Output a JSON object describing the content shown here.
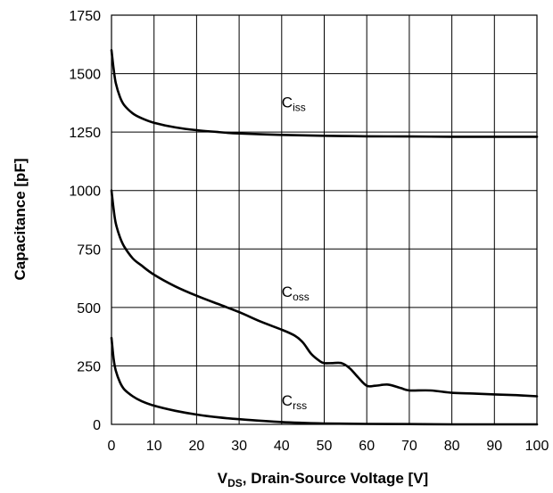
{
  "chart_data": {
    "type": "line",
    "xlabel": {
      "main": "V",
      "sub": "DS",
      "rest": ", Drain-Source Voltage [V]"
    },
    "ylabel": "Capacitance [pF]",
    "xlim": [
      0,
      100
    ],
    "ylim": [
      0,
      1750
    ],
    "x_ticks": [
      0,
      10,
      20,
      30,
      40,
      50,
      60,
      70,
      80,
      90,
      100
    ],
    "y_ticks": [
      0,
      250,
      500,
      750,
      1000,
      1250,
      1500,
      1750
    ],
    "grid": true,
    "series": [
      {
        "name": "Ciss",
        "label_main": "C",
        "label_sub": "iss",
        "x": [
          0,
          0.5,
          1,
          2,
          3,
          5,
          7,
          10,
          15,
          20,
          25,
          30,
          40,
          50,
          60,
          70,
          80,
          90,
          100
        ],
        "y": [
          1600,
          1520,
          1460,
          1400,
          1365,
          1330,
          1310,
          1290,
          1270,
          1258,
          1250,
          1244,
          1238,
          1234,
          1232,
          1231,
          1230,
          1230,
          1230
        ]
      },
      {
        "name": "Coss",
        "label_main": "C",
        "label_sub": "oss",
        "x": [
          0,
          0.5,
          1,
          2,
          3,
          5,
          7,
          10,
          15,
          20,
          25,
          30,
          35,
          40,
          43,
          45,
          47,
          49,
          50,
          52,
          54,
          56,
          58,
          60,
          62,
          65,
          68,
          70,
          75,
          80,
          85,
          90,
          95,
          100
        ],
        "y": [
          1000,
          920,
          860,
          800,
          760,
          710,
          680,
          640,
          590,
          550,
          515,
          480,
          440,
          405,
          380,
          350,
          300,
          270,
          262,
          262,
          262,
          240,
          200,
          165,
          165,
          170,
          155,
          145,
          145,
          135,
          132,
          128,
          125,
          120
        ]
      },
      {
        "name": "Crss",
        "label_main": "C",
        "label_sub": "rss",
        "x": [
          0,
          0.5,
          1,
          2,
          3,
          5,
          7,
          10,
          15,
          20,
          25,
          30,
          40,
          50,
          60,
          70,
          80,
          90,
          100
        ],
        "y": [
          370,
          280,
          230,
          180,
          150,
          120,
          100,
          80,
          58,
          42,
          30,
          22,
          10,
          4,
          2,
          1,
          0,
          0,
          0
        ]
      }
    ]
  }
}
